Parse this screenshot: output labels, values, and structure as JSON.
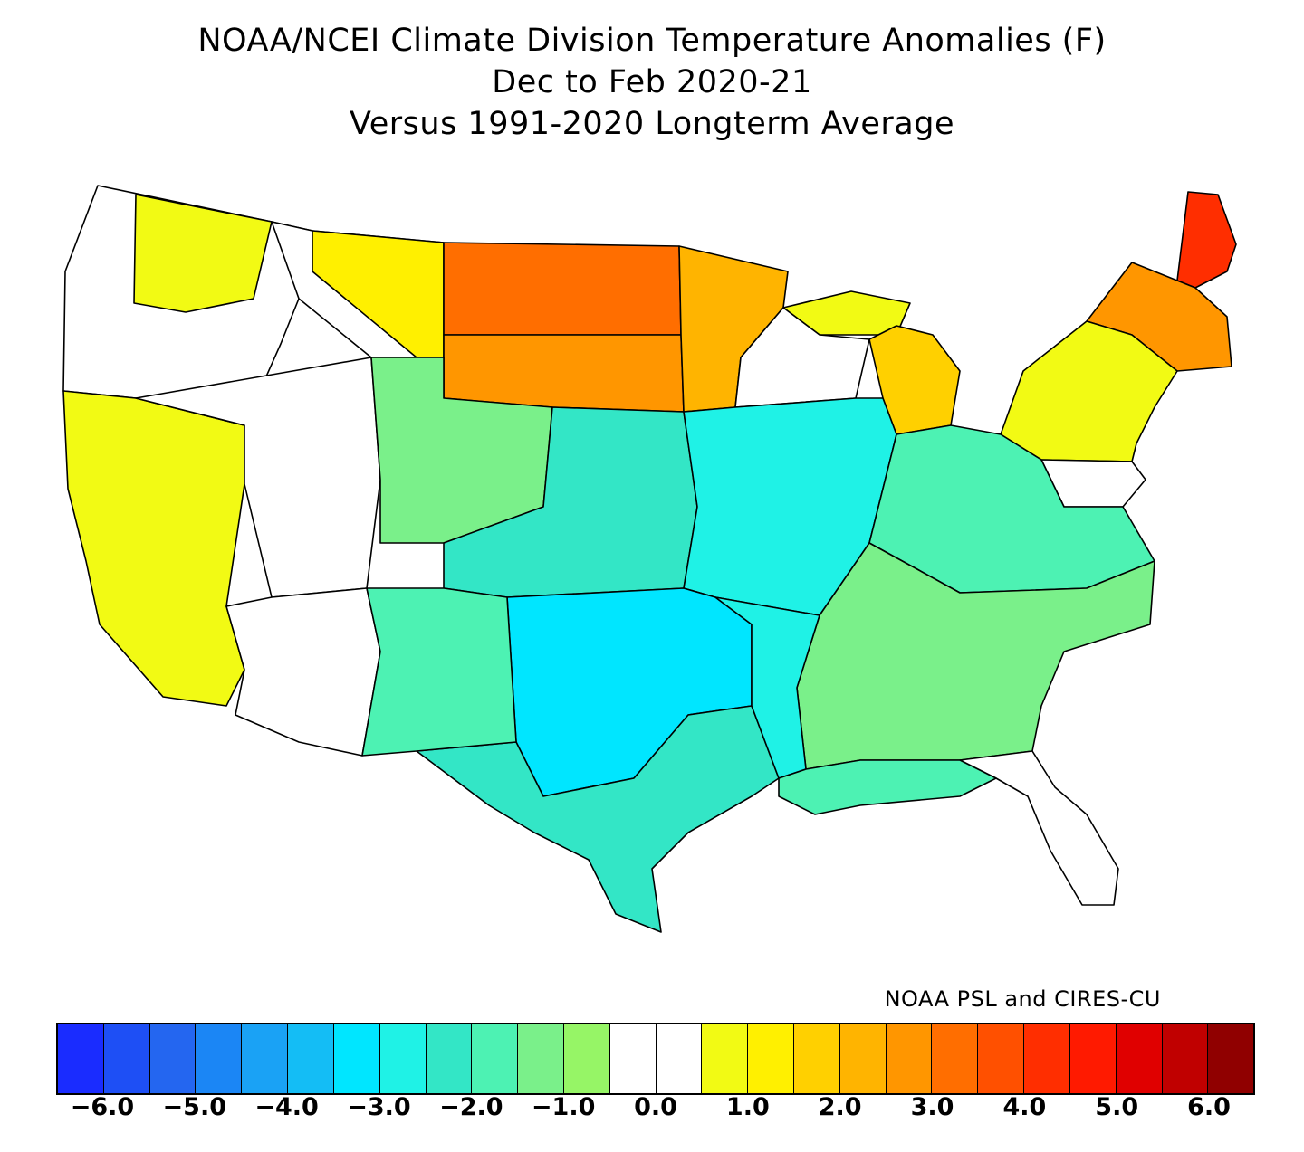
{
  "title": {
    "line1": "NOAA/NCEI Climate Division Temperature Anomalies (F)",
    "line2": "Dec to Feb 2020-21",
    "line3": "Versus 1991-2020 Longterm Average"
  },
  "credit": "NOAA PSL and CIRES-CU",
  "legend": {
    "colors": [
      "#1a2cff",
      "#1e4ff5",
      "#2466f0",
      "#1b86f5",
      "#1aa2f5",
      "#14bdf5",
      "#00e6ff",
      "#1ff2e6",
      "#33e6c6",
      "#4df2b3",
      "#7af08a",
      "#96f566",
      "#ffffff",
      "#ffffff",
      "#f2fa14",
      "#fff000",
      "#ffd000",
      "#ffb400",
      "#ff9600",
      "#ff6e00",
      "#ff5000",
      "#ff2e00",
      "#ff1a00",
      "#e00000",
      "#c00000",
      "#900000"
    ],
    "tick_labels": [
      "-6.0",
      "-5.0",
      "-4.0",
      "-3.0",
      "-2.0",
      "-1.0",
      "0.0",
      "1.0",
      "2.0",
      "3.0",
      "4.0",
      "5.0",
      "6.0"
    ]
  },
  "regions": [
    {
      "name": "northwest-inland",
      "color": "#ffffff"
    },
    {
      "name": "washington-west",
      "color": "#f2fa14"
    },
    {
      "name": "northern-rockies",
      "color": "#ffffff"
    },
    {
      "name": "montana-east",
      "color": "#fff000"
    },
    {
      "name": "north-dakota",
      "color": "#ff6e00"
    },
    {
      "name": "south-dakota",
      "color": "#ff9600"
    },
    {
      "name": "minnesota",
      "color": "#ffb400"
    },
    {
      "name": "upper-michigan",
      "color": "#f2fa14"
    },
    {
      "name": "wisconsin",
      "color": "#ffffff"
    },
    {
      "name": "lower-michigan",
      "color": "#ffd000"
    },
    {
      "name": "new-england-east",
      "color": "#ff2e00"
    },
    {
      "name": "new-england-west",
      "color": "#ff9600"
    },
    {
      "name": "new-york-pennsylvania",
      "color": "#f2fa14"
    },
    {
      "name": "mid-atlantic",
      "color": "#ffffff"
    },
    {
      "name": "california-nevada",
      "color": "#f2fa14"
    },
    {
      "name": "great-basin",
      "color": "#ffffff"
    },
    {
      "name": "arizona",
      "color": "#ffffff"
    },
    {
      "name": "wyoming-colorado",
      "color": "#7af08a"
    },
    {
      "name": "central-plains",
      "color": "#33e6c6"
    },
    {
      "name": "midwest",
      "color": "#1ff2e6"
    },
    {
      "name": "ohio-valley",
      "color": "#4df2b3"
    },
    {
      "name": "southeast",
      "color": "#7af08a"
    },
    {
      "name": "florida",
      "color": "#ffffff"
    },
    {
      "name": "oklahoma-texas-panhandle",
      "color": "#00e6ff"
    },
    {
      "name": "texas-south",
      "color": "#33e6c6"
    },
    {
      "name": "new-mexico",
      "color": "#4df2b3"
    },
    {
      "name": "mississippi-valley",
      "color": "#1ff2e6"
    },
    {
      "name": "gulf-coast",
      "color": "#4df2b3"
    }
  ]
}
